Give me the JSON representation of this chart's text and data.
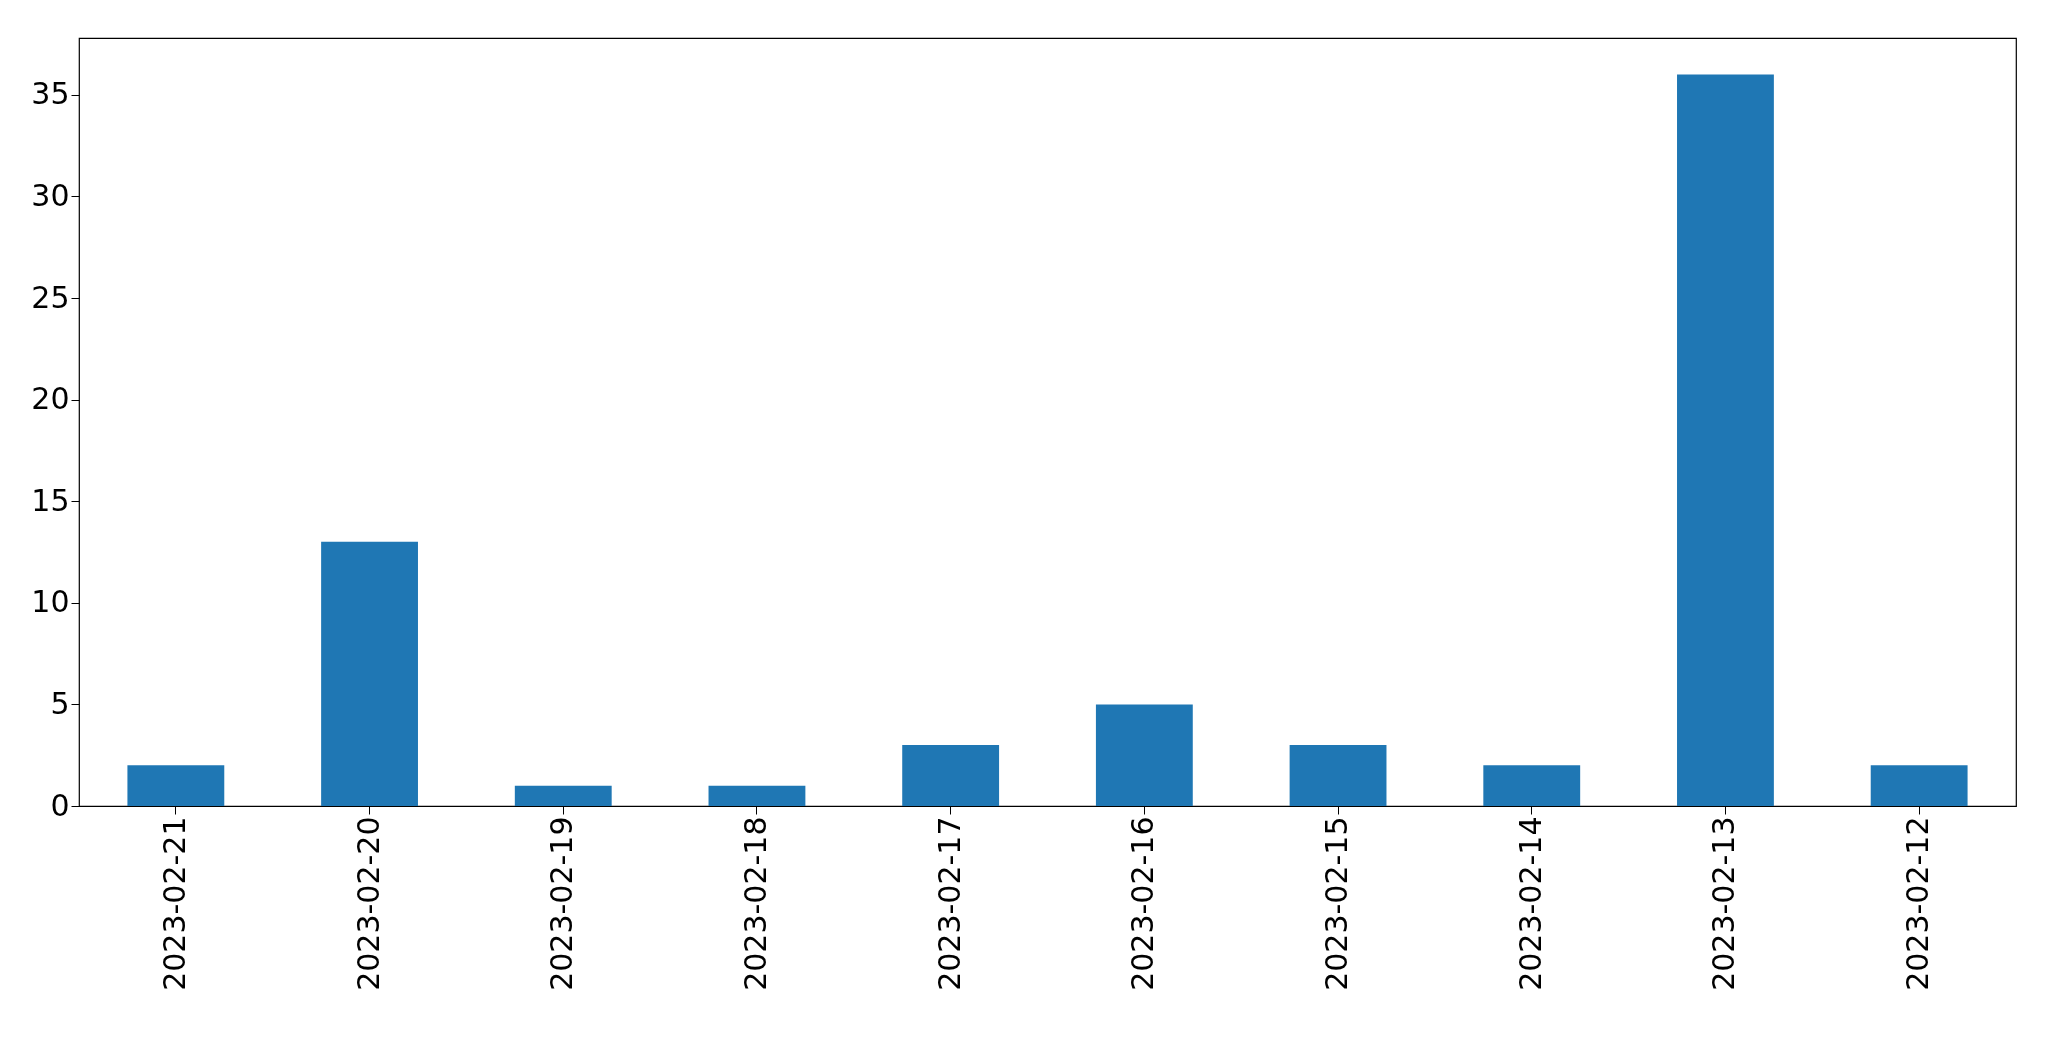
{
  "chart_data": {
    "type": "bar",
    "categories": [
      "2023-02-21",
      "2023-02-20",
      "2023-02-19",
      "2023-02-18",
      "2023-02-17",
      "2023-02-16",
      "2023-02-15",
      "2023-02-14",
      "2023-02-13",
      "2023-02-12"
    ],
    "values": [
      2,
      13,
      1,
      1,
      3,
      5,
      3,
      2,
      36,
      2
    ],
    "color": "#1f77b4",
    "ylim": [
      0,
      37.8
    ],
    "yticks": [
      0,
      5,
      10,
      15,
      20,
      25,
      30,
      35
    ],
    "grid": false
  }
}
